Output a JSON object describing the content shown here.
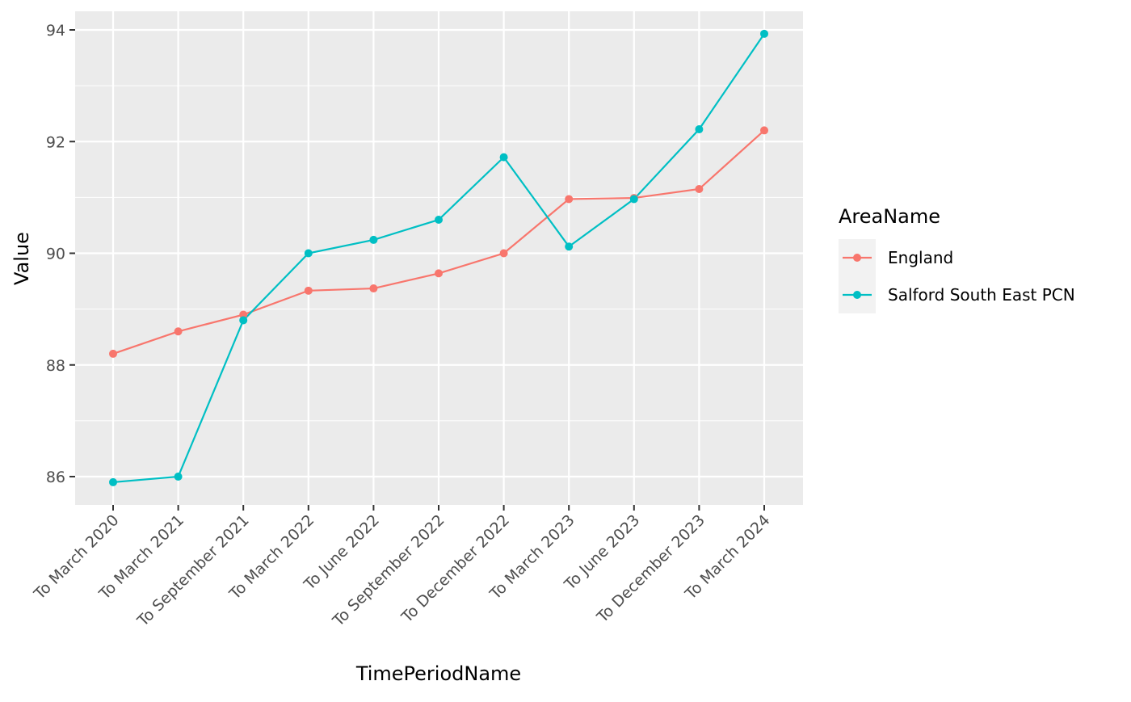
{
  "chart_data": {
    "type": "line",
    "title": "",
    "xlabel": "TimePeriodName",
    "ylabel": "Value",
    "categories": [
      "To March 2020",
      "To March 2021",
      "To September 2021",
      "To March 2022",
      "To June 2022",
      "To September 2022",
      "To December 2022",
      "To March 2023",
      "To June 2023",
      "To December 2023",
      "To March 2024"
    ],
    "ylim": [
      85.5,
      94.3
    ],
    "yticks": [
      86,
      88,
      90,
      92,
      94
    ],
    "grid": true,
    "legend": {
      "title": "AreaName",
      "placement": "right"
    },
    "series": [
      {
        "name": "England",
        "color": "#F8766D",
        "values": [
          88.2,
          88.6,
          88.9,
          89.33,
          89.37,
          89.64,
          90.0,
          90.97,
          90.99,
          91.15,
          92.2
        ]
      },
      {
        "name": "Salford South East PCN",
        "color": "#00BFC4",
        "values": [
          85.9,
          86.0,
          88.8,
          90.0,
          90.24,
          90.6,
          91.72,
          90.12,
          90.97,
          92.22,
          93.93
        ]
      }
    ],
    "panel_color": "#EBEBEB",
    "grid_color": "#FFFFFF"
  }
}
